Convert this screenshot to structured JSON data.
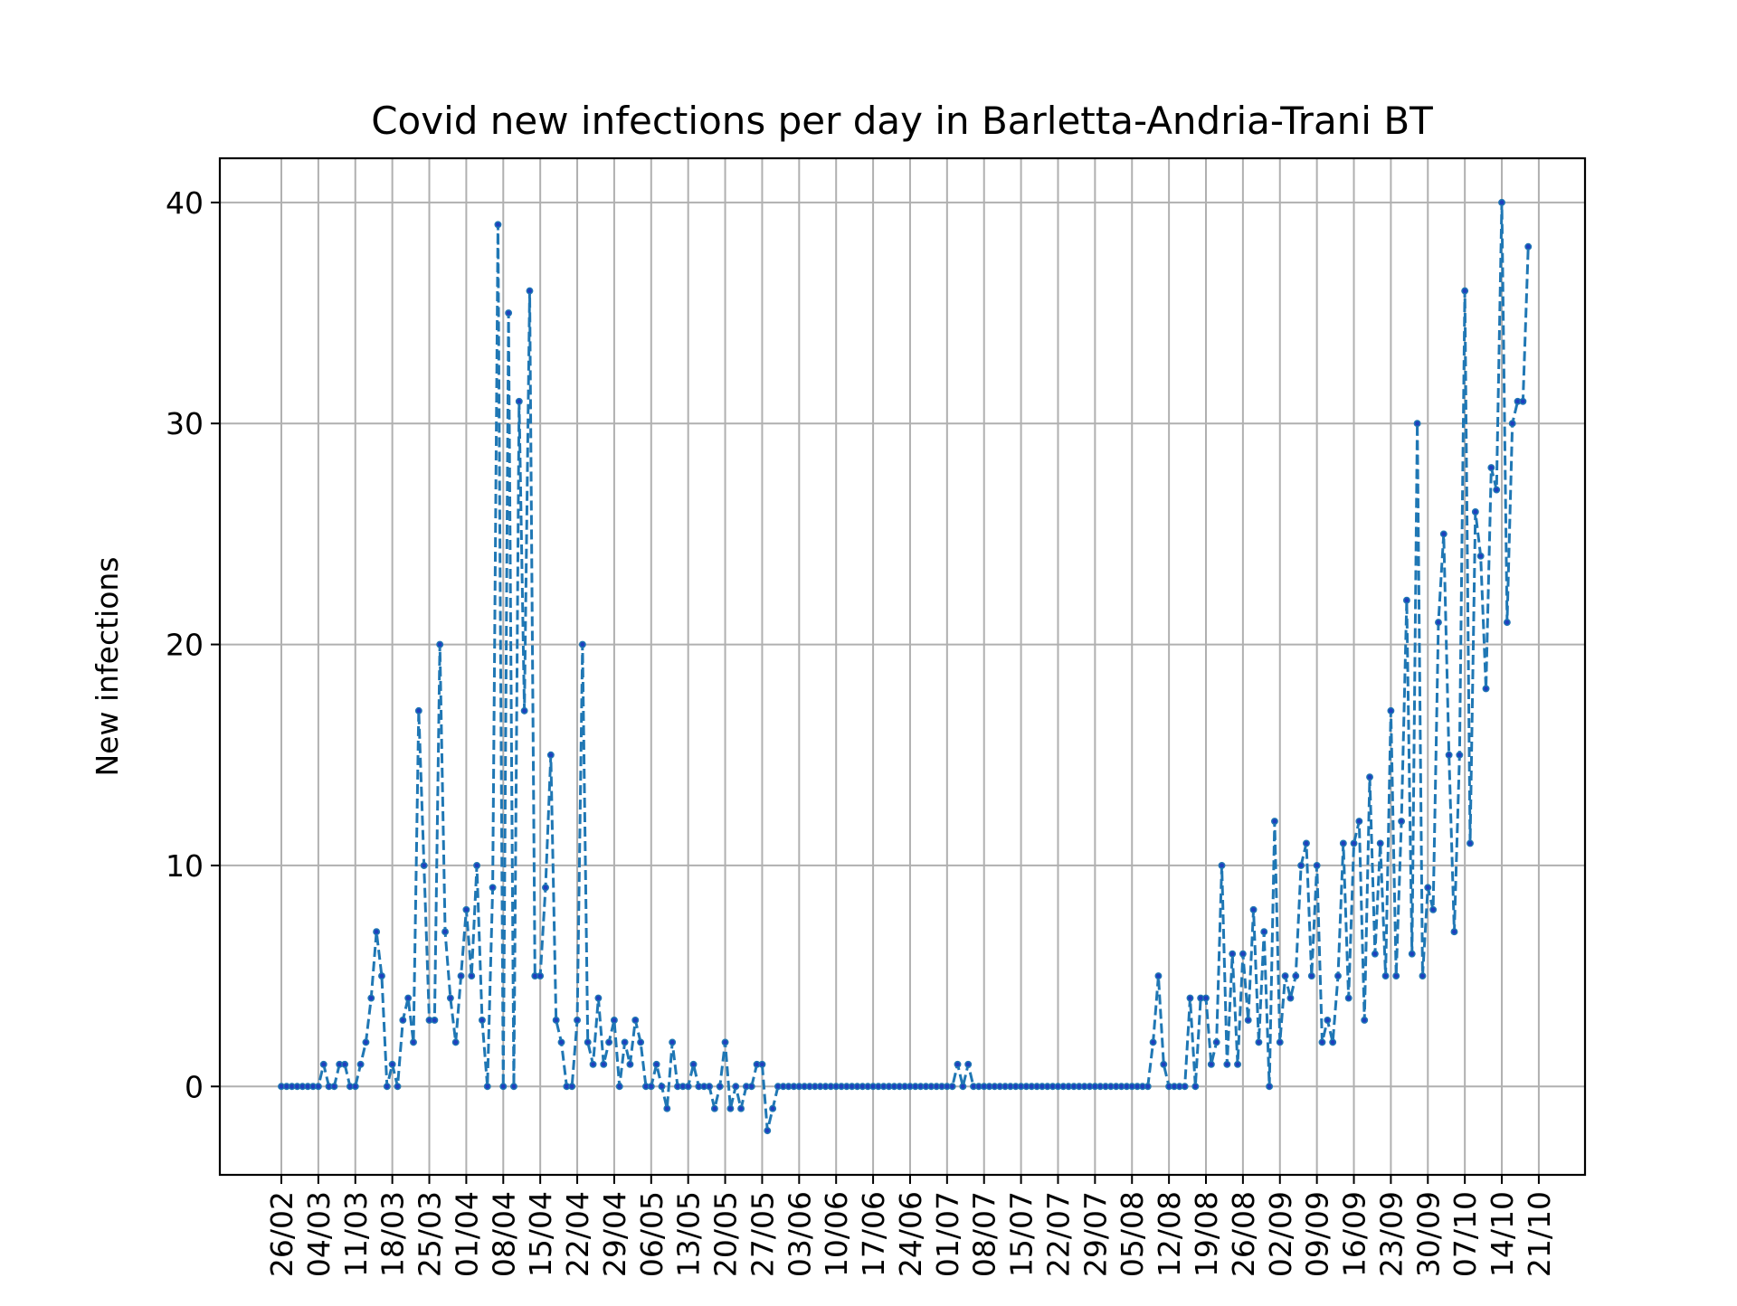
{
  "chart_data": {
    "type": "line",
    "title": "Covid new infections per day in Barletta-Andria-Trani BT",
    "xlabel": "",
    "ylabel": "New infections",
    "ylim": [
      -4,
      42
    ],
    "yticks": [
      0,
      10,
      20,
      30,
      40
    ],
    "grid": true,
    "line_style": "dashed",
    "marker": "dot",
    "color": "#1f77b4",
    "marker_color": "#1f3fbf",
    "xtick_labels": [
      "26/02",
      "04/03",
      "11/03",
      "18/03",
      "25/03",
      "01/04",
      "08/04",
      "15/04",
      "22/04",
      "29/04",
      "06/05",
      "13/05",
      "20/05",
      "27/05",
      "03/06",
      "10/06",
      "17/06",
      "24/06",
      "01/07",
      "08/07",
      "15/07",
      "22/07",
      "29/07",
      "05/08",
      "12/08",
      "19/08",
      "26/08",
      "02/09",
      "09/09",
      "16/09",
      "23/09",
      "30/09",
      "07/10",
      "14/10",
      "21/10"
    ],
    "series": [
      {
        "values": [
          0,
          0,
          0,
          0,
          0,
          0,
          0,
          0,
          1,
          0,
          0,
          1,
          1,
          0,
          0,
          1,
          2,
          4,
          7,
          5,
          0,
          1,
          0,
          3,
          4,
          2,
          17,
          10,
          3,
          3,
          20,
          7,
          4,
          2,
          5,
          8,
          5,
          10,
          3,
          0,
          9,
          39,
          0,
          35,
          0,
          31,
          17,
          36,
          5,
          5,
          9,
          15,
          3,
          2,
          0,
          0,
          3,
          20,
          2,
          1,
          4,
          1,
          2,
          3,
          0,
          2,
          1,
          3,
          2,
          0,
          0,
          1,
          0,
          -1,
          2,
          0,
          0,
          0,
          1,
          0,
          0,
          0,
          -1,
          0,
          2,
          -1,
          0,
          -1,
          0,
          0,
          1,
          1,
          -2,
          -1,
          0,
          0,
          0,
          0,
          0,
          0,
          0,
          0,
          0,
          0,
          0,
          0,
          0,
          0,
          0,
          0,
          0,
          0,
          0,
          0,
          0,
          0,
          0,
          0,
          0,
          0,
          0,
          0,
          0,
          0,
          0,
          0,
          0,
          0,
          1,
          0,
          1,
          0,
          0,
          0,
          0,
          0,
          0,
          0,
          0,
          0,
          0,
          0,
          0,
          0,
          0,
          0,
          0,
          0,
          0,
          0,
          0,
          0,
          0,
          0,
          0,
          0,
          0,
          0,
          0,
          0,
          0,
          0,
          0,
          0,
          0,
          2,
          5,
          1,
          0,
          0,
          0,
          0,
          4,
          0,
          4,
          4,
          1,
          2,
          10,
          1,
          6,
          1,
          6,
          3,
          8,
          2,
          7,
          0,
          12,
          2,
          5,
          4,
          5,
          10,
          11,
          5,
          10,
          2,
          3,
          2,
          5,
          11,
          4,
          11,
          12,
          3,
          14,
          6,
          11,
          5,
          17,
          5,
          12,
          22,
          6,
          30,
          5,
          9,
          8,
          21,
          25,
          15,
          7,
          15,
          36,
          11,
          26,
          24,
          18,
          28,
          27,
          40,
          21,
          30,
          31,
          31,
          38
        ]
      }
    ]
  }
}
